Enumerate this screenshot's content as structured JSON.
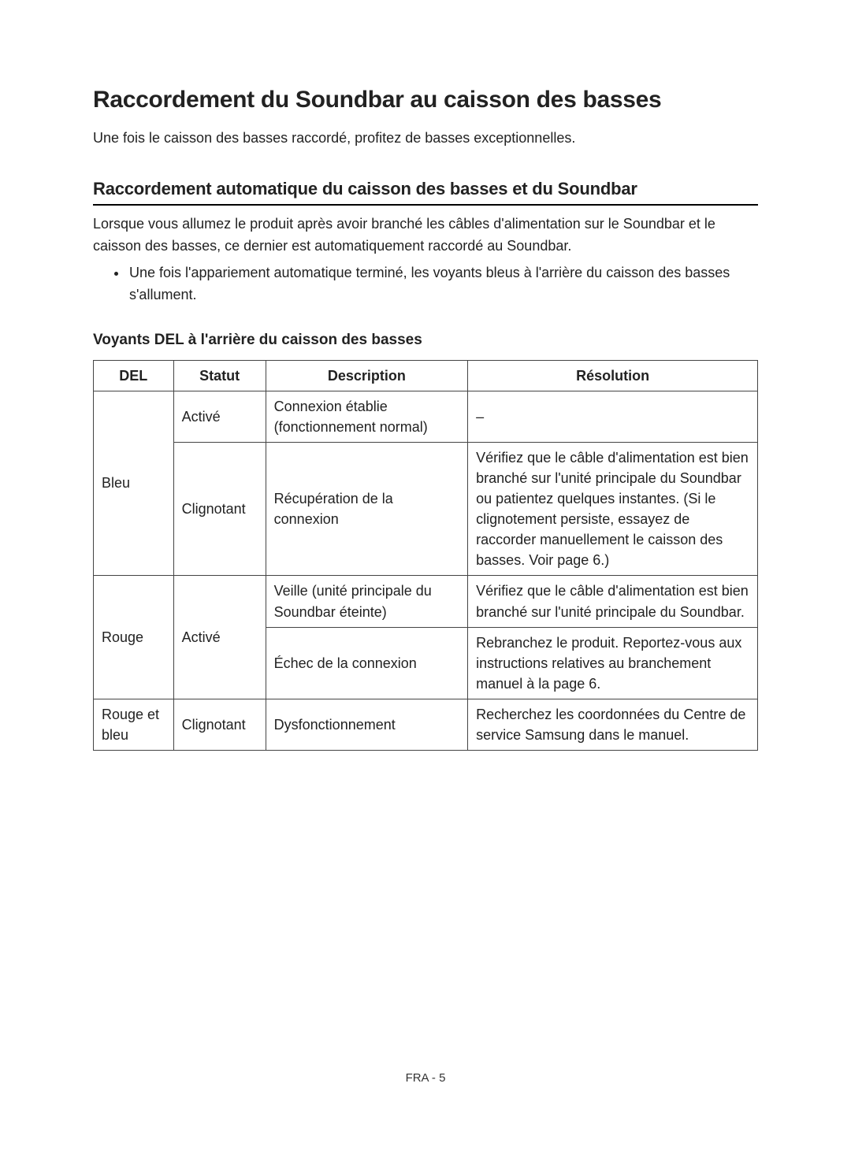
{
  "title": "Raccordement du Soundbar au caisson des basses",
  "intro": "Une fois le caisson des basses raccordé, profitez de basses exceptionnelles.",
  "subhead": "Raccordement automatique du caisson des basses et du Soundbar",
  "para": "Lorsque vous allumez le produit après avoir branché les câbles d'alimentation sur le Soundbar et le caisson des basses, ce dernier est automatiquement raccordé au Soundbar.",
  "bullet1": "Une fois l'appariement automatique terminé, les voyants bleus à l'arrière du caisson des basses s'allument.",
  "tablehead": "Voyants DEL à l'arrière du caisson des basses",
  "headers": {
    "del": "DEL",
    "statut": "Statut",
    "description": "Description",
    "resolution": "Résolution"
  },
  "rows": {
    "r1": {
      "del": "Bleu",
      "statut": "Activé",
      "desc": "Connexion établie (fonctionnement normal)",
      "res": "–"
    },
    "r2": {
      "statut": "Clignotant",
      "desc": "Récupération de la connexion",
      "res": "Vérifiez que le câble d'alimentation est bien branché sur l'unité principale du Soundbar ou patientez quelques instantes.\n(Si le clignotement persiste, essayez de raccorder manuellement le caisson des basses. Voir page 6.)"
    },
    "r3": {
      "del": "Rouge",
      "statut": "Activé",
      "desc": "Veille (unité principale du Soundbar éteinte)",
      "res": "Vérifiez que le câble d'alimentation est bien branché sur l'unité principale du Soundbar."
    },
    "r4": {
      "desc": "Échec de la connexion",
      "res": "Rebranchez le produit. Reportez-vous aux instructions relatives au branchement manuel à la page 6."
    },
    "r5": {
      "del": "Rouge et bleu",
      "statut": "Clignotant",
      "desc": "Dysfonctionnement",
      "res": "Recherchez les coordonnées du Centre de service Samsung dans le manuel."
    }
  },
  "footer": "FRA - 5"
}
